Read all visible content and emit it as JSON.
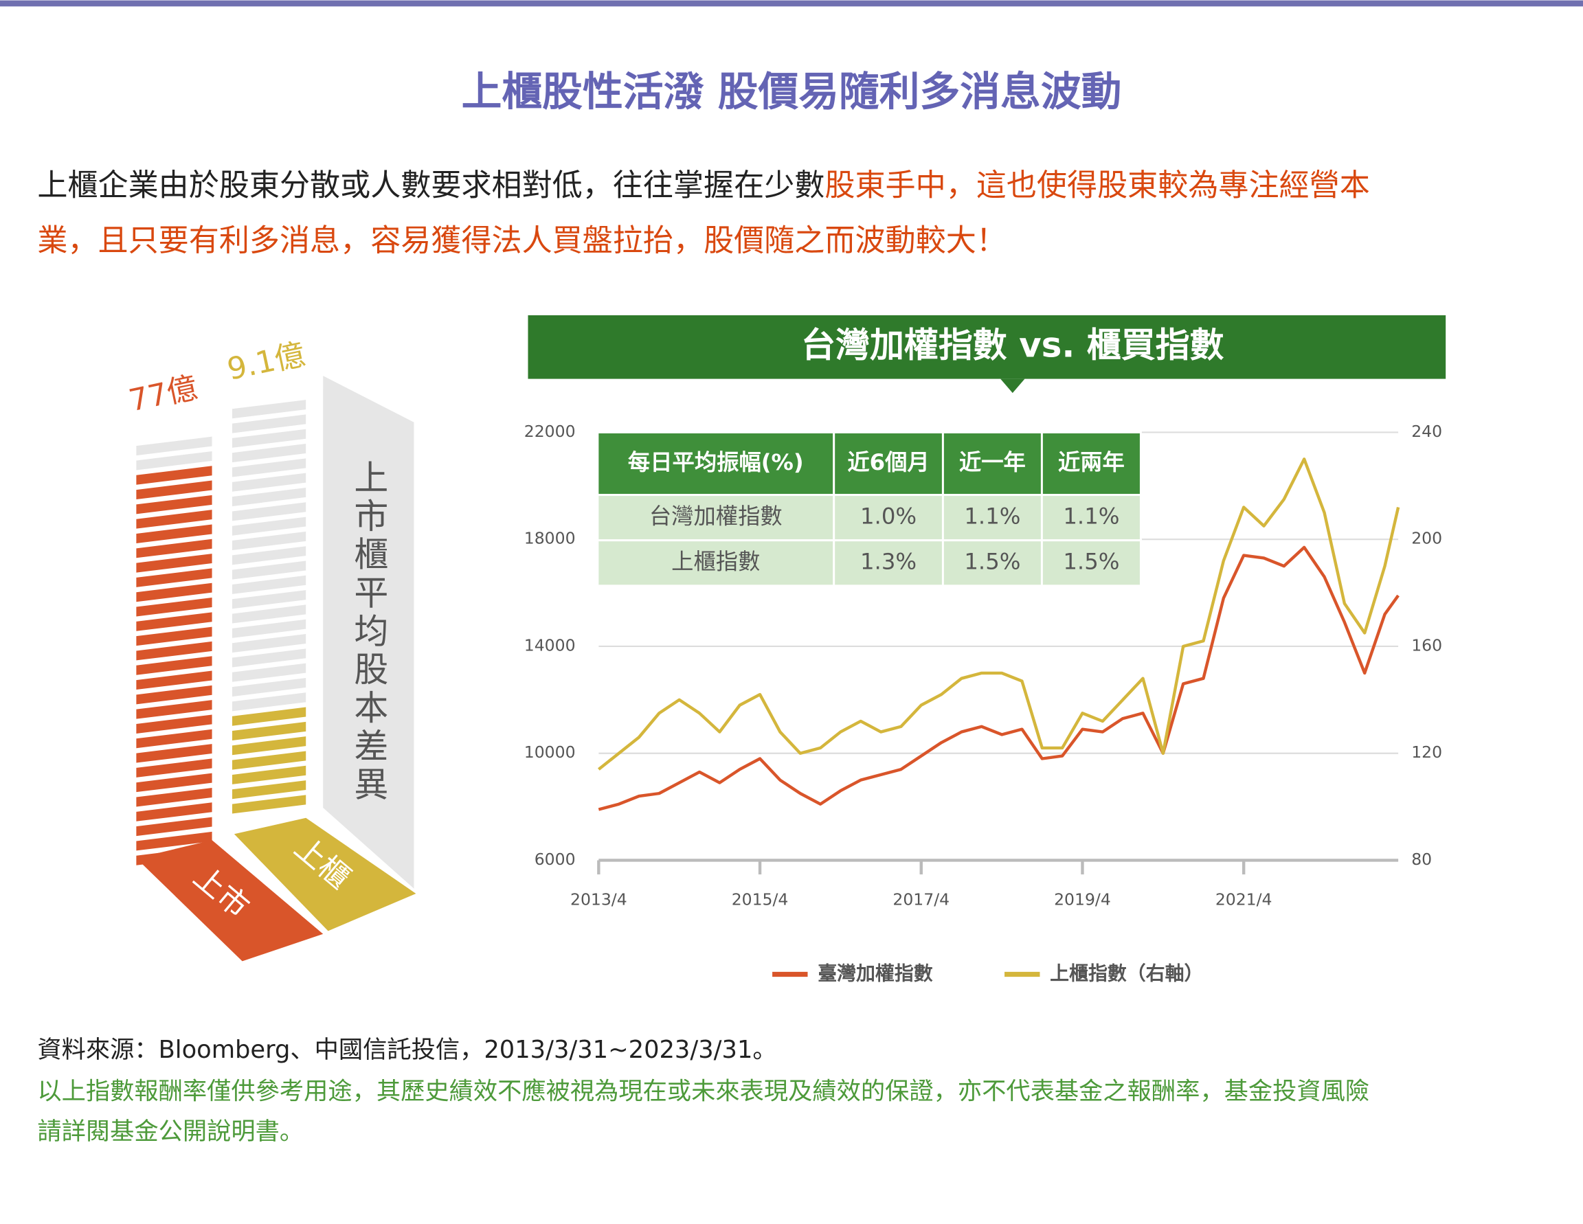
{
  "header": {
    "title": "上櫃股性活潑  股價易隨利多消息波動"
  },
  "intro": {
    "lines": [
      [
        {
          "text": "上櫃企業由於股東分散或人數要求相對低，往往掌握在少數",
          "emphasis": false
        },
        {
          "text": "股東手中，這也使得股東較為專注經營本",
          "emphasis": true
        }
      ],
      [
        {
          "text": "業，且只要有利多消息，容易獲得法人買盤拉抬，股價隨之而波動較大！",
          "emphasis": true
        }
      ]
    ]
  },
  "capital_graphic": {
    "listed_amount": "77億",
    "otc_amount": "9.1億",
    "caption": "上市櫃平均股本差異",
    "listed": "上市",
    "otc": "上櫃"
  },
  "chart_data": {
    "type": "line",
    "title": "台灣加權指數 vs. 櫃買指數",
    "x": [
      "2013/4",
      "2013/7",
      "2013/10",
      "2014/1",
      "2014/4",
      "2014/7",
      "2014/10",
      "2015/1",
      "2015/4",
      "2015/7",
      "2015/10",
      "2016/1",
      "2016/4",
      "2016/7",
      "2016/10",
      "2017/1",
      "2017/4",
      "2017/7",
      "2017/10",
      "2018/1",
      "2018/4",
      "2018/7",
      "2018/10",
      "2019/1",
      "2019/4",
      "2019/7",
      "2019/10",
      "2020/1",
      "2020/4",
      "2020/7",
      "2020/10",
      "2021/1",
      "2021/4",
      "2021/7",
      "2021/10",
      "2022/1",
      "2022/4",
      "2022/7",
      "2022/10",
      "2023/1",
      "2023/3"
    ],
    "series": [
      {
        "name": "臺灣加權指數",
        "color": "#d9552a",
        "values": [
          7900,
          8100,
          8400,
          8500,
          8900,
          9300,
          8900,
          9400,
          9800,
          9000,
          8500,
          8100,
          8600,
          9000,
          9200,
          9400,
          9900,
          10400,
          10800,
          11000,
          10700,
          10900,
          9800,
          9900,
          10900,
          10800,
          11300,
          11500,
          10000,
          12600,
          12800,
          15800,
          17400,
          17300,
          17000,
          17700,
          16600,
          14900,
          13000,
          15200,
          15900
        ]
      },
      {
        "name": "上櫃指數（右軸）",
        "color": "#d4b63c",
        "axis": "y2",
        "values": [
          114,
          120,
          126,
          135,
          140,
          135,
          128,
          138,
          142,
          128,
          120,
          122,
          128,
          132,
          128,
          130,
          138,
          142,
          148,
          150,
          150,
          147,
          122,
          122,
          135,
          132,
          140,
          148,
          120,
          160,
          162,
          192,
          212,
          205,
          215,
          230,
          210,
          176,
          165,
          190,
          212
        ]
      }
    ],
    "xlim": [
      "2013/4",
      "2023/3"
    ],
    "xticks": [
      "2013/4",
      "2015/4",
      "2017/4",
      "2019/4",
      "2021/4"
    ],
    "ylim": [
      6000,
      22000
    ],
    "yticks": [
      6000,
      10000,
      14000,
      18000,
      22000
    ],
    "y2lim": [
      80,
      240
    ],
    "y2ticks": [
      80,
      120,
      160,
      200,
      240
    ],
    "grid": true,
    "legend": "bottom"
  },
  "table": {
    "header": [
      "每日平均振幅(%)",
      "近6個月",
      "近一年",
      "近兩年"
    ],
    "rows": [
      [
        "台灣加權指數",
        "1.0%",
        "1.1%",
        "1.1%"
      ],
      [
        "上櫃指數",
        "1.3%",
        "1.5%",
        "1.5%"
      ]
    ]
  },
  "footer": {
    "source": "資料來源：Bloomberg、中國信託投信，2013/3/31~2023/3/31。",
    "disclaimer_lines": [
      "以上指數報酬率僅供參考用途，其歷史績效不應被視為現在或未來表現及績效的保證，亦不代表基金之報酬率，基金投資風險",
      "請詳閱基金公開說明書。"
    ]
  }
}
